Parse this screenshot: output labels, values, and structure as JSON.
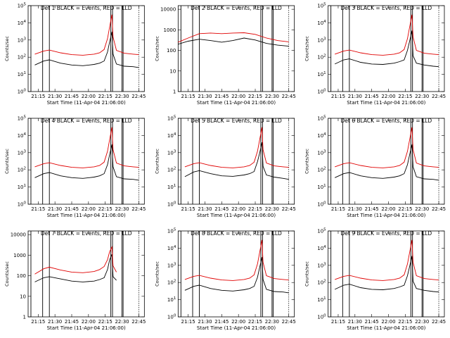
{
  "figure": {
    "background": "#ffffff",
    "events_color": "#000000",
    "lld_color": "#e00000",
    "x_ticks": [
      "21:15",
      "21:30",
      "21:45",
      "22:00",
      "22:15",
      "22:30",
      "22:45"
    ],
    "x_tick_values_min": [
      15,
      30,
      45,
      60,
      75,
      90,
      105
    ],
    "xlim_min": [
      6,
      110
    ],
    "xlabel": "Start Time (11-Apr-04 21:06:00)",
    "ylabel": "Counts/sec",
    "attenuator_marks_min": [
      8.5,
      19,
      25,
      80,
      81.5,
      90,
      91
    ],
    "dotted_end_min": 105
  },
  "chart_data": [
    {
      "type": "line",
      "detector": 1,
      "scale": "log",
      "title": "Det 1 BLACK = Events, RED = LLD",
      "ylim": [
        1,
        100000
      ],
      "yticks": [
        1,
        10,
        100,
        1000,
        10000,
        100000
      ],
      "ytick_labels": [
        "10^0",
        "10^1",
        "10^2",
        "10^3",
        "10^4",
        "10^5"
      ],
      "x": [
        12,
        20,
        25,
        35,
        45,
        55,
        65,
        70,
        74,
        77,
        79,
        81,
        82,
        85,
        92,
        100,
        105
      ],
      "series": [
        {
          "name": "BLACK = Events",
          "y": [
            35,
            60,
            70,
            45,
            35,
            32,
            38,
            45,
            60,
            200,
            800,
            3000,
            150,
            40,
            30,
            28,
            25
          ]
        },
        {
          "name": "RED = LLD",
          "y": [
            150,
            230,
            260,
            180,
            140,
            130,
            150,
            180,
            280,
            1200,
            6000,
            30000,
            1500,
            250,
            170,
            150,
            140
          ]
        }
      ]
    },
    {
      "type": "line",
      "detector": 2,
      "scale": "log",
      "title": "Det 2 BLACK = Events, RED = LLD",
      "ylim": [
        1,
        15000
      ],
      "yticks": [
        1,
        10,
        100,
        1000,
        10000
      ],
      "ytick_labels": [
        "1",
        "10",
        "100",
        "1000",
        "10000"
      ],
      "x": [
        6,
        15,
        25,
        35,
        45,
        55,
        65,
        75,
        85,
        95,
        105
      ],
      "series": [
        {
          "name": "BLACK = Events",
          "y": [
            200,
            280,
            350,
            300,
            250,
            300,
            400,
            320,
            220,
            180,
            160
          ]
        },
        {
          "name": "RED = LLD",
          "y": [
            250,
            400,
            650,
            700,
            650,
            700,
            720,
            600,
            400,
            300,
            260
          ]
        }
      ]
    },
    {
      "type": "line",
      "detector": 3,
      "scale": "log",
      "title": "Det 3 BLACK = Events, RED = LLD",
      "ylim": [
        1,
        100000
      ],
      "yticks": [
        1,
        10,
        100,
        1000,
        10000,
        100000
      ],
      "ytick_labels": [
        "10^0",
        "10^1",
        "10^2",
        "10^3",
        "10^4",
        "10^5"
      ],
      "x": [
        12,
        20,
        25,
        35,
        45,
        55,
        65,
        70,
        74,
        77,
        79,
        81,
        82,
        85,
        92,
        100,
        105
      ],
      "series": [
        {
          "name": "BLACK = Events",
          "y": [
            40,
            70,
            80,
            50,
            40,
            38,
            45,
            55,
            70,
            250,
            900,
            3500,
            120,
            45,
            35,
            30,
            28
          ]
        },
        {
          "name": "RED = LLD",
          "y": [
            150,
            230,
            260,
            180,
            140,
            130,
            150,
            180,
            280,
            1200,
            6000,
            30000,
            1500,
            250,
            170,
            150,
            140
          ]
        }
      ]
    },
    {
      "type": "line",
      "detector": 4,
      "scale": "log",
      "title": "Det 4 BLACK = Events, RED = LLD",
      "ylim": [
        1,
        100000
      ],
      "yticks": [
        1,
        10,
        100,
        1000,
        10000,
        100000
      ],
      "ytick_labels": [
        "10^0",
        "10^1",
        "10^2",
        "10^3",
        "10^4",
        "10^5"
      ],
      "x": [
        12,
        20,
        25,
        35,
        45,
        55,
        65,
        70,
        74,
        77,
        79,
        81,
        82,
        85,
        92,
        100,
        105
      ],
      "series": [
        {
          "name": "BLACK = Events",
          "y": [
            35,
            60,
            70,
            45,
            35,
            32,
            38,
            45,
            60,
            200,
            800,
            3000,
            150,
            40,
            30,
            28,
            25
          ]
        },
        {
          "name": "RED = LLD",
          "y": [
            150,
            230,
            260,
            180,
            140,
            130,
            150,
            180,
            280,
            1200,
            6000,
            30000,
            1500,
            250,
            170,
            150,
            140
          ]
        }
      ]
    },
    {
      "type": "line",
      "detector": 5,
      "scale": "log",
      "title": "Det 5 BLACK = Events, RED = LLD",
      "ylim": [
        1,
        100000
      ],
      "yticks": [
        1,
        10,
        100,
        1000,
        10000,
        100000
      ],
      "ytick_labels": [
        "10^0",
        "10^1",
        "10^2",
        "10^3",
        "10^4",
        "10^5"
      ],
      "x": [
        12,
        20,
        25,
        35,
        45,
        55,
        65,
        70,
        74,
        77,
        79,
        81,
        82,
        85,
        92,
        100,
        105
      ],
      "series": [
        {
          "name": "BLACK = Events",
          "y": [
            40,
            75,
            90,
            60,
            45,
            42,
            50,
            60,
            80,
            300,
            1000,
            4000,
            160,
            50,
            38,
            32,
            28
          ]
        },
        {
          "name": "RED = LLD",
          "y": [
            150,
            230,
            260,
            180,
            140,
            130,
            150,
            180,
            280,
            1200,
            6000,
            30000,
            1500,
            250,
            170,
            150,
            140
          ]
        }
      ]
    },
    {
      "type": "line",
      "detector": 6,
      "scale": "log",
      "title": "Det 6 BLACK = Events, RED = LLD",
      "ylim": [
        1,
        100000
      ],
      "yticks": [
        1,
        10,
        100,
        1000,
        10000,
        100000
      ],
      "ytick_labels": [
        "10^0",
        "10^1",
        "10^2",
        "10^3",
        "10^4",
        "10^5"
      ],
      "x": [
        12,
        20,
        25,
        35,
        45,
        55,
        65,
        70,
        74,
        77,
        79,
        81,
        82,
        85,
        92,
        100,
        105
      ],
      "series": [
        {
          "name": "BLACK = Events",
          "y": [
            35,
            60,
            70,
            45,
            35,
            32,
            38,
            45,
            60,
            200,
            800,
            3000,
            150,
            40,
            30,
            28,
            25
          ]
        },
        {
          "name": "RED = LLD",
          "y": [
            150,
            230,
            260,
            180,
            140,
            130,
            150,
            180,
            280,
            1200,
            6000,
            30000,
            1500,
            250,
            170,
            150,
            140
          ]
        }
      ]
    },
    {
      "type": "line",
      "detector": 7,
      "scale": "log",
      "title": "Det 7 BLACK = Events, RED = LLD",
      "ylim": [
        1,
        15000
      ],
      "yticks": [
        1,
        10,
        100,
        1000,
        10000
      ],
      "ytick_labels": [
        "1",
        "10",
        "100",
        "1000",
        "10000"
      ],
      "x": [
        12,
        20,
        25,
        35,
        45,
        55,
        65,
        70,
        74,
        77,
        79,
        81,
        82,
        85
      ],
      "series": [
        {
          "name": "BLACK = Events",
          "y": [
            50,
            80,
            90,
            70,
            55,
            50,
            55,
            65,
            80,
            200,
            600,
            1100,
            90,
            60
          ]
        },
        {
          "name": "RED = LLD",
          "y": [
            120,
            220,
            260,
            190,
            150,
            140,
            160,
            200,
            280,
            600,
            1500,
            2500,
            300,
            150
          ]
        }
      ]
    },
    {
      "type": "line",
      "detector": 8,
      "scale": "log",
      "title": "Det 8 BLACK = Events, RED = LLD",
      "ylim": [
        1,
        100000
      ],
      "yticks": [
        1,
        10,
        100,
        1000,
        10000,
        100000
      ],
      "ytick_labels": [
        "10^0",
        "10^1",
        "10^2",
        "10^3",
        "10^4",
        "10^5"
      ],
      "x": [
        12,
        20,
        25,
        35,
        45,
        55,
        65,
        70,
        74,
        77,
        79,
        81,
        82,
        85,
        92,
        100,
        105
      ],
      "series": [
        {
          "name": "BLACK = Events",
          "y": [
            35,
            60,
            70,
            45,
            35,
            32,
            38,
            45,
            60,
            200,
            800,
            3000,
            150,
            40,
            30,
            28,
            25
          ]
        },
        {
          "name": "RED = LLD",
          "y": [
            150,
            230,
            260,
            180,
            140,
            130,
            150,
            180,
            280,
            1200,
            6000,
            30000,
            1500,
            250,
            170,
            150,
            140
          ]
        }
      ]
    },
    {
      "type": "line",
      "detector": 9,
      "scale": "log",
      "title": "Det 9 BLACK = Events, RED = LLD",
      "ylim": [
        1,
        100000
      ],
      "yticks": [
        1,
        10,
        100,
        1000,
        10000,
        100000
      ],
      "ytick_labels": [
        "10^0",
        "10^1",
        "10^2",
        "10^3",
        "10^4",
        "10^5"
      ],
      "x": [
        12,
        20,
        25,
        35,
        45,
        55,
        65,
        70,
        74,
        77,
        79,
        81,
        82,
        85,
        92,
        100,
        105
      ],
      "series": [
        {
          "name": "BLACK = Events",
          "y": [
            40,
            70,
            80,
            50,
            40,
            38,
            45,
            55,
            70,
            250,
            900,
            3500,
            120,
            45,
            35,
            30,
            28
          ]
        },
        {
          "name": "RED = LLD",
          "y": [
            150,
            230,
            260,
            180,
            140,
            130,
            150,
            180,
            280,
            1200,
            6000,
            30000,
            1500,
            250,
            170,
            150,
            140
          ]
        }
      ]
    }
  ]
}
